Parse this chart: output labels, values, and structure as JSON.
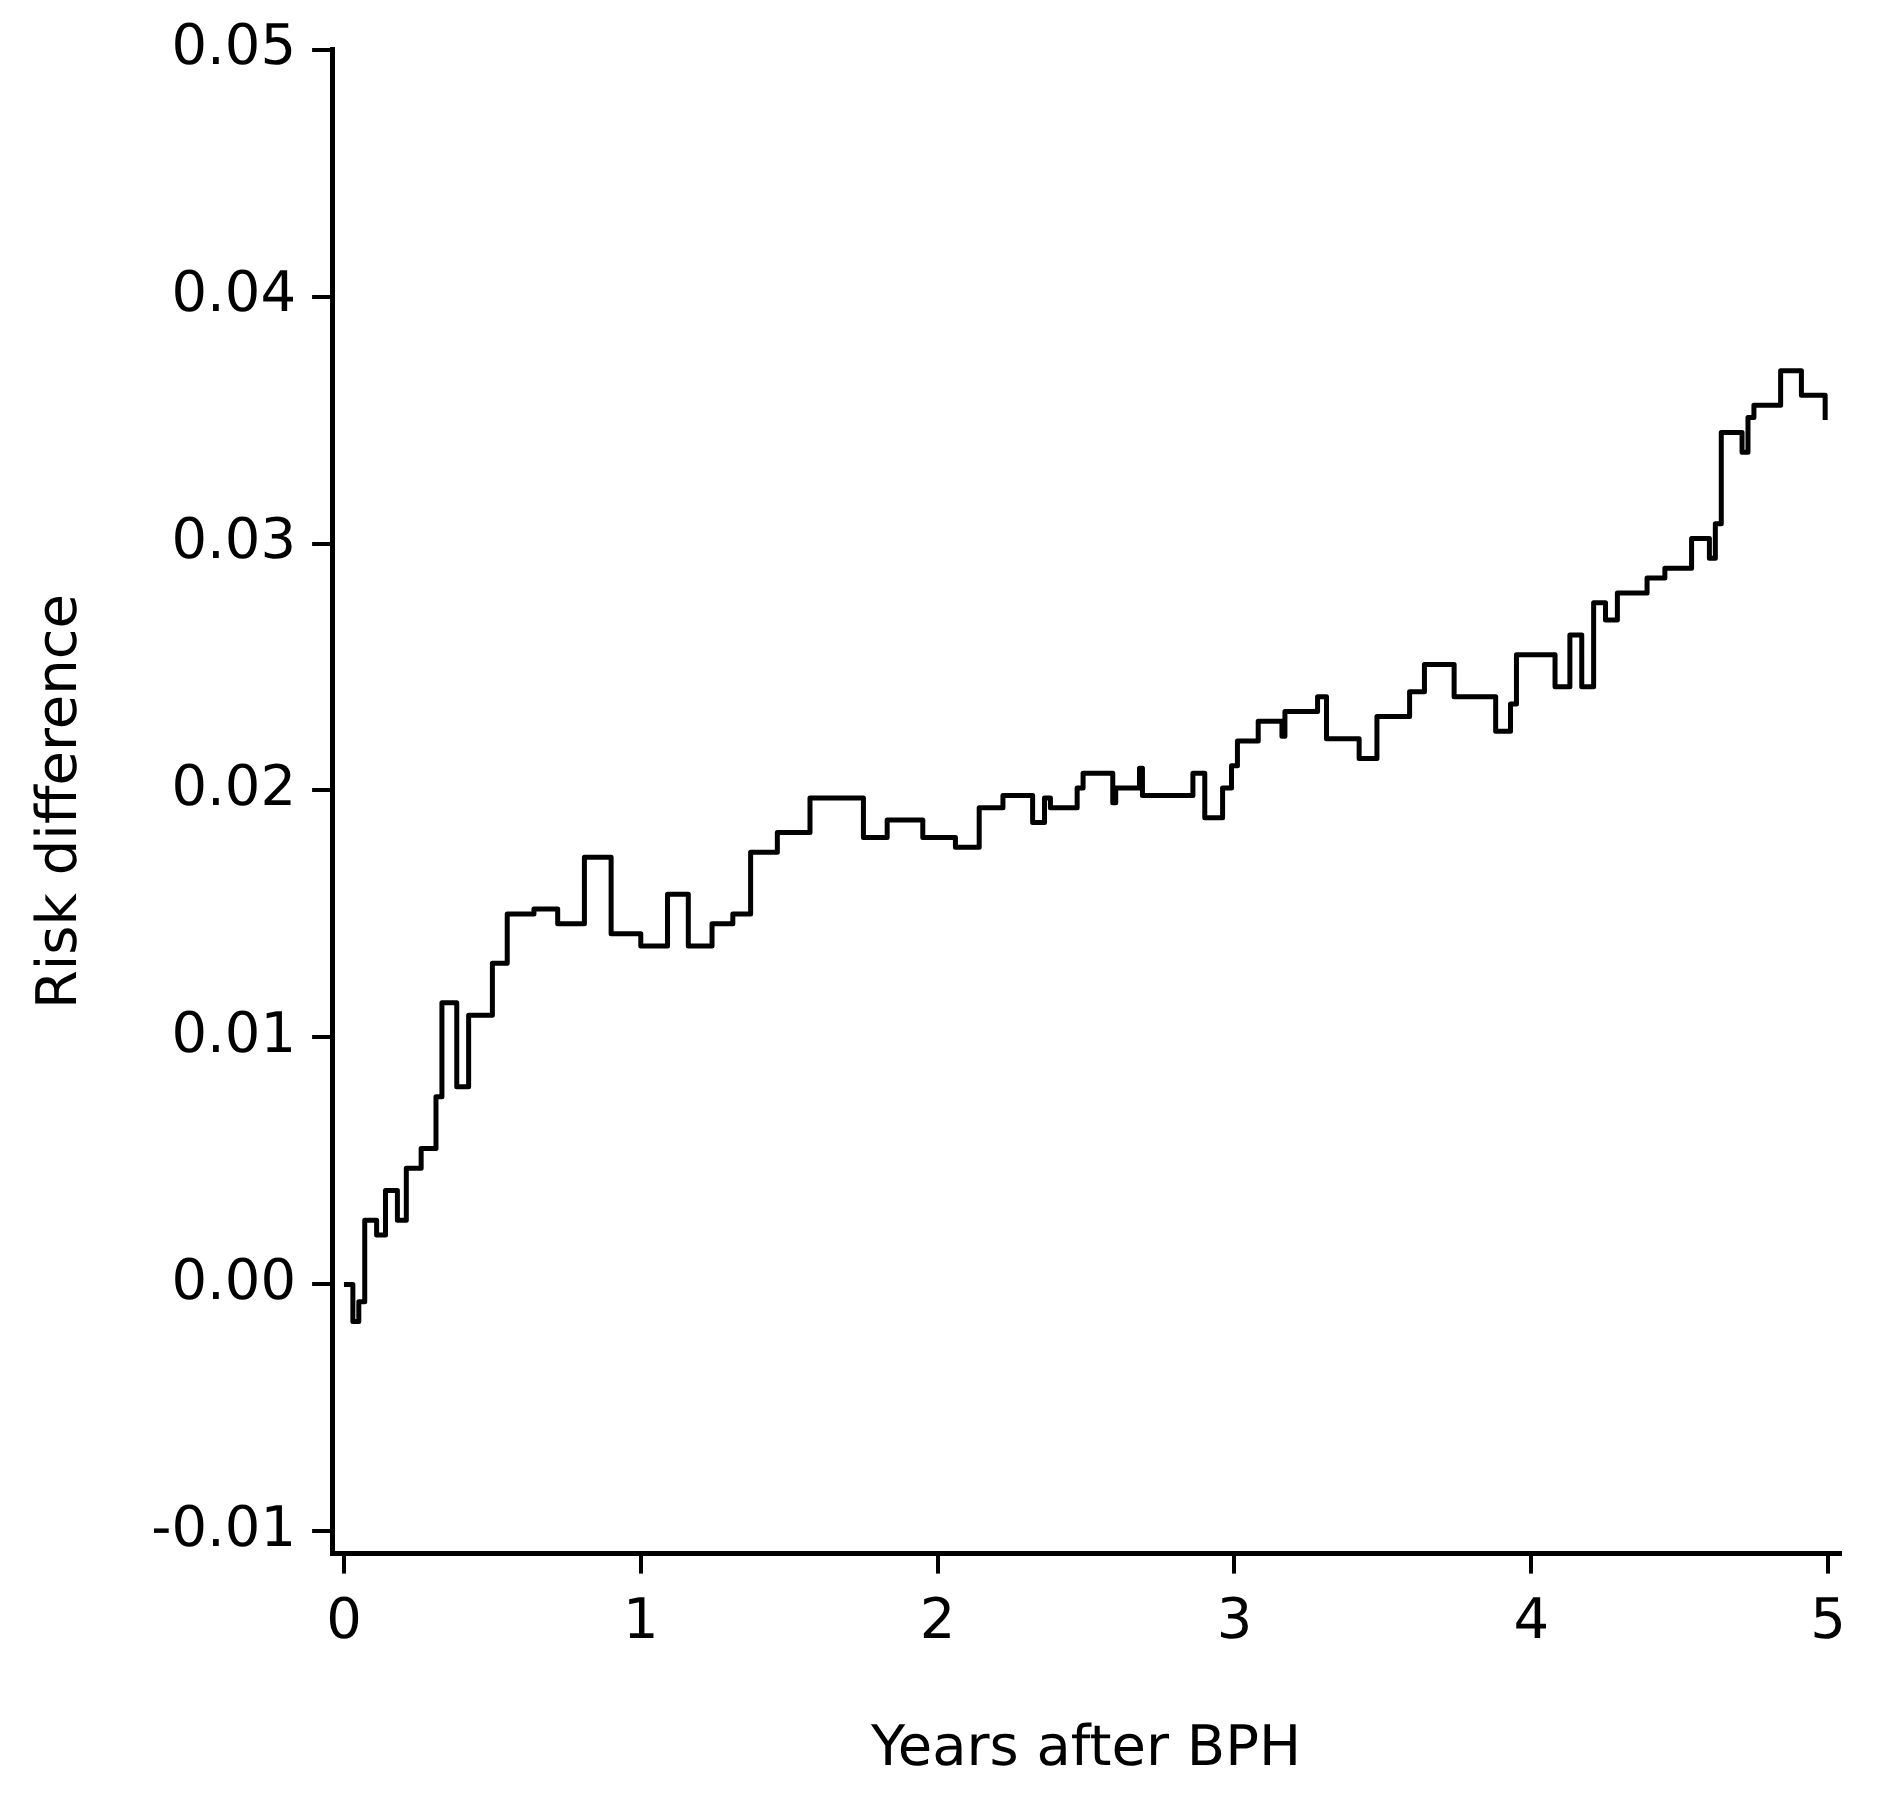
{
  "chart_data": {
    "type": "step",
    "xlabel": "Years after BPH",
    "ylabel": "Risk difference",
    "xlim": [
      -0.04,
      5.04
    ],
    "ylim": [
      -0.0109,
      0.05
    ],
    "xticks": [
      0,
      1,
      2,
      3,
      4,
      5
    ],
    "yticks": [
      {
        "value": -0.01,
        "label": "-0.01"
      },
      {
        "value": 0,
        "label": "0.00"
      },
      0.01,
      0.02,
      0.03,
      0.04,
      0.05
    ],
    "grid": false,
    "legend": false,
    "marker": "none",
    "line_style": "solid",
    "series": [
      {
        "color": "#000000",
        "x": [
          0,
          0.03,
          0.05,
          0.07,
          0.11,
          0.14,
          0.18,
          0.21,
          0.26,
          0.31,
          0.33,
          0.38,
          0.42,
          0.5,
          0.55,
          0.64,
          0.72,
          0.81,
          0.9,
          1.0,
          1.09,
          1.16,
          1.24,
          1.31,
          1.37,
          1.46,
          1.57,
          1.68,
          1.75,
          1.83,
          1.95,
          2.06,
          2.14,
          2.22,
          2.32,
          2.36,
          2.38,
          2.46,
          2.47,
          2.49,
          2.59,
          2.6,
          2.68,
          2.69,
          2.84,
          2.86,
          2.9,
          2.96,
          2.99,
          3.01,
          3.08,
          3.16,
          3.17,
          3.28,
          3.31,
          3.4,
          3.42,
          3.48,
          3.58,
          3.59,
          3.64,
          3.7,
          3.74,
          3.85,
          3.88,
          3.93,
          3.95,
          4.06,
          4.08,
          4.13,
          4.17,
          4.21,
          4.25,
          4.29,
          4.39,
          4.45,
          4.54,
          4.6,
          4.62,
          4.64,
          4.71,
          4.73,
          4.75,
          4.82,
          4.84,
          4.9,
          4.91,
          4.99
        ],
        "values": [
          0,
          -0.0015,
          -0.0007,
          0.0026,
          0.002,
          0.0038,
          0.0026,
          0.0047,
          0.0055,
          0.0076,
          0.0114,
          0.008,
          0.0109,
          0.013,
          0.015,
          0.0152,
          0.0146,
          0.0173,
          0.0142,
          0.0137,
          0.0158,
          0.0137,
          0.0146,
          0.015,
          0.0175,
          0.0183,
          0.0197,
          0.0197,
          0.0181,
          0.0188,
          0.0181,
          0.0177,
          0.0193,
          0.0198,
          0.0187,
          0.0197,
          0.0193,
          0.0193,
          0.0201,
          0.0207,
          0.0195,
          0.0201,
          0.0209,
          0.0198,
          0.0198,
          0.0207,
          0.0189,
          0.0201,
          0.021,
          0.022,
          0.0228,
          0.0222,
          0.0232,
          0.0238,
          0.0221,
          0.0221,
          0.0213,
          0.023,
          0.023,
          0.024,
          0.0251,
          0.0251,
          0.0238,
          0.0238,
          0.0224,
          0.0235,
          0.0255,
          0.0255,
          0.0242,
          0.0263,
          0.0242,
          0.0276,
          0.0269,
          0.028,
          0.0286,
          0.029,
          0.0302,
          0.0294,
          0.0308,
          0.0345,
          0.0337,
          0.0351,
          0.0356,
          0.0356,
          0.037,
          0.037,
          0.036,
          0.035
        ]
      }
    ]
  }
}
